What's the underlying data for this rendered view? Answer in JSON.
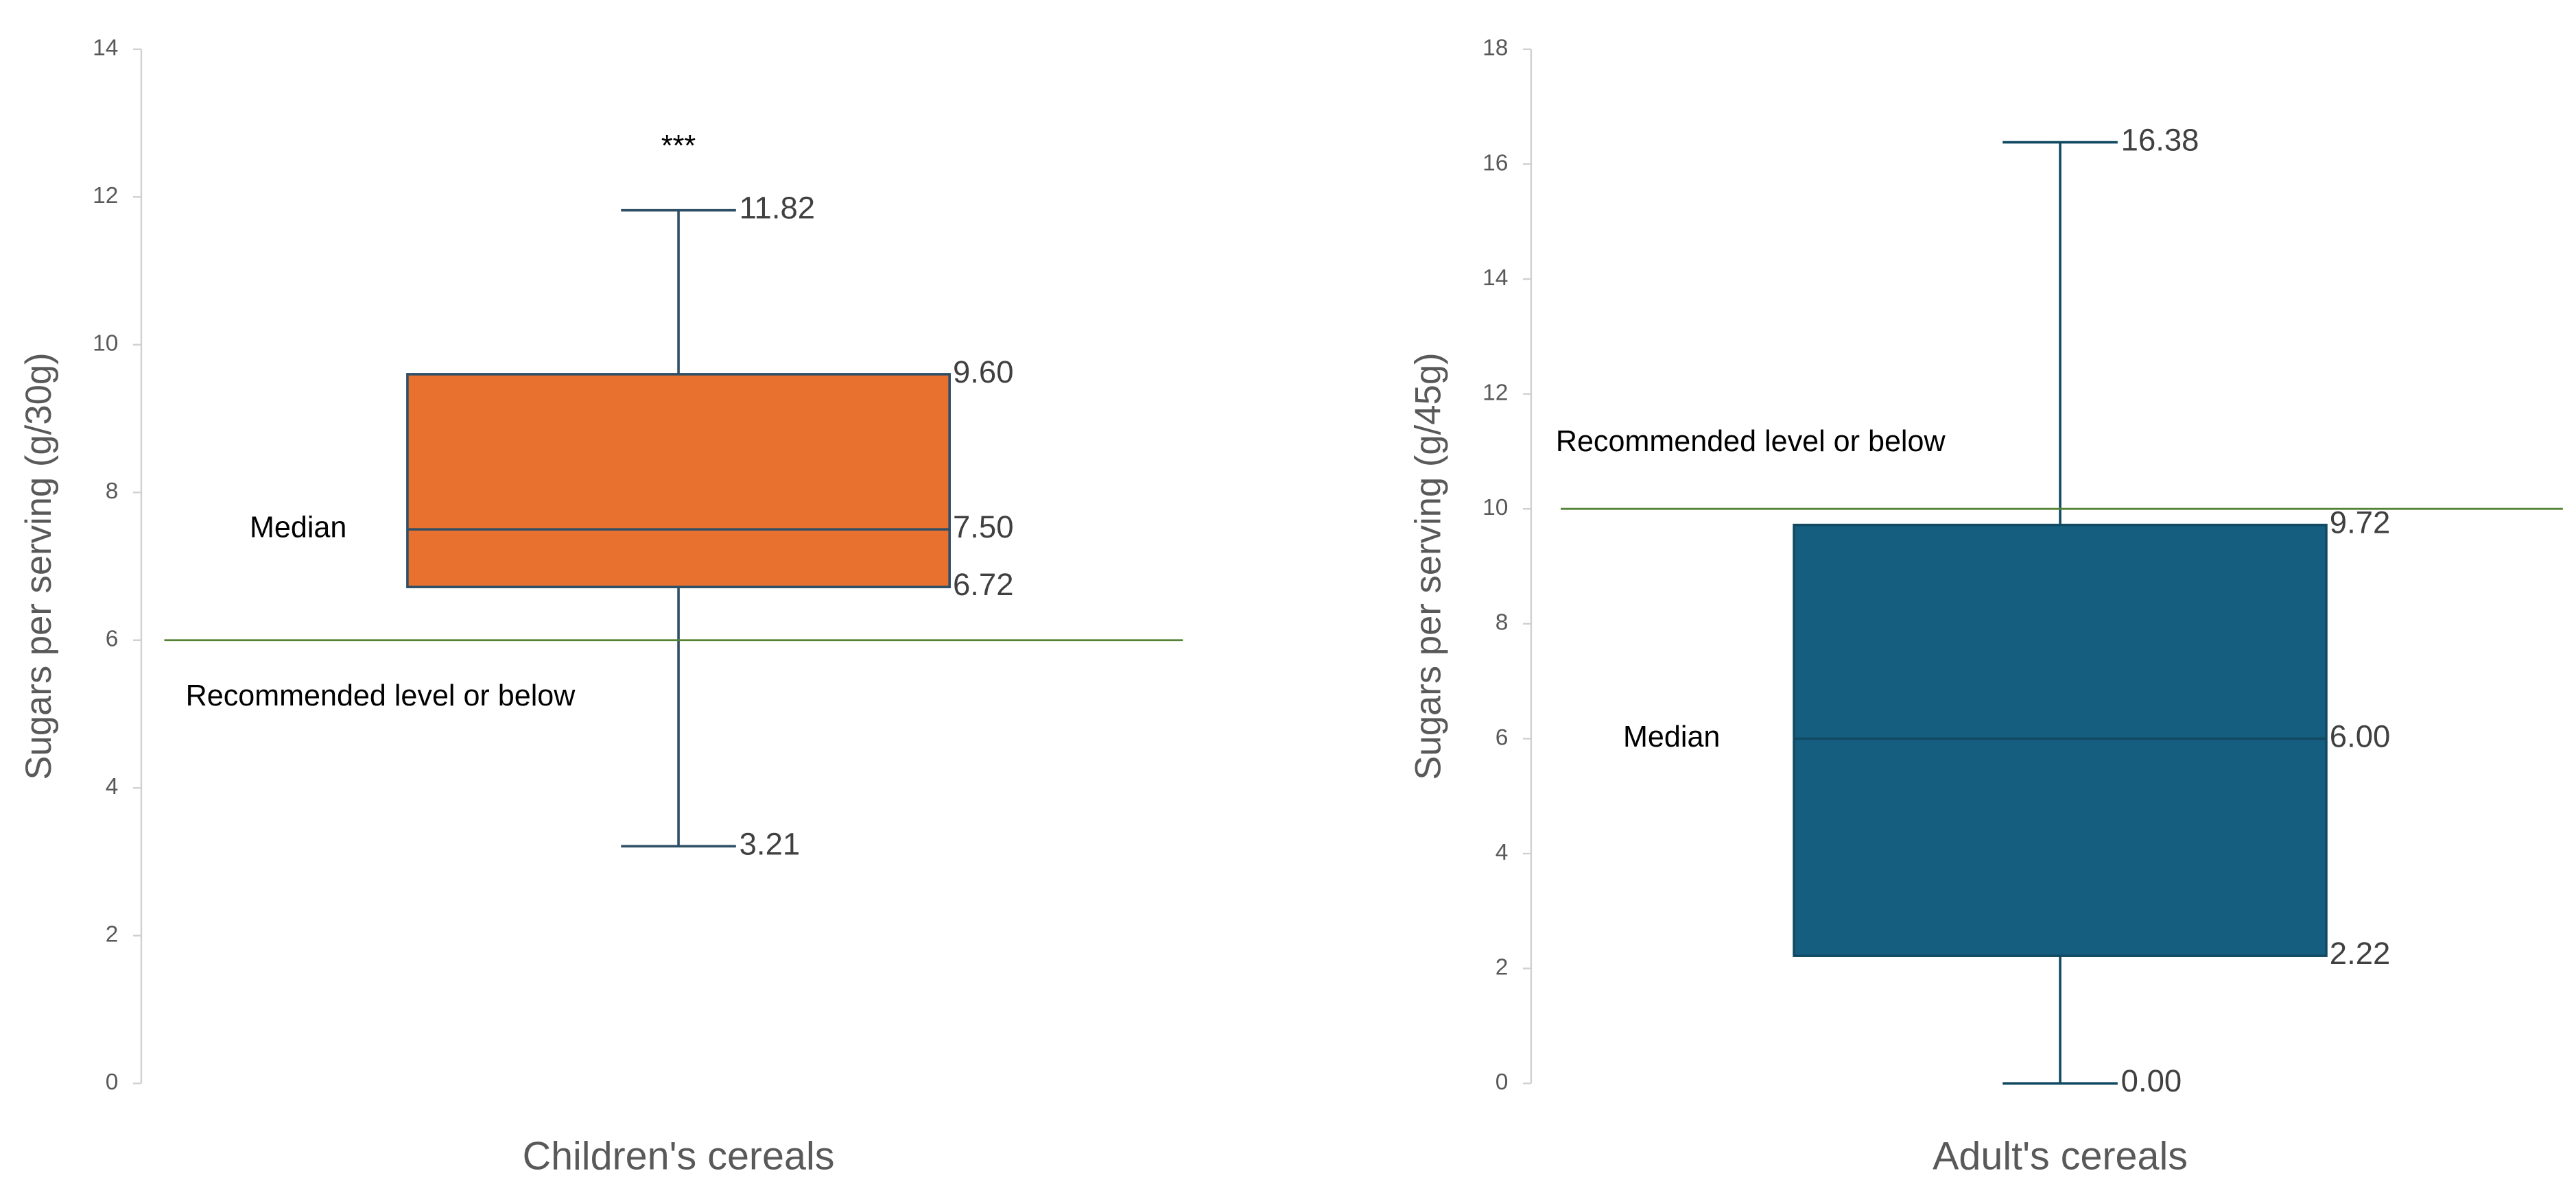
{
  "chart_data": [
    {
      "type": "box",
      "categories": [
        "Children's cereals"
      ],
      "y_label": "Sugars per serving (g/30g)",
      "ylim": [
        0,
        14
      ],
      "yticks": [
        0,
        2,
        4,
        6,
        8,
        10,
        12,
        14
      ],
      "color": "#E87130",
      "line_color": "#2F4F66",
      "boxes": [
        {
          "min": 3.21,
          "q1": 6.72,
          "median": 7.5,
          "q3": 9.6,
          "max": 11.82
        }
      ],
      "value_labels": {
        "min": "3.21",
        "q1": "6.72",
        "median": "7.50",
        "q3": "9.60",
        "max": "11.82"
      },
      "median_label": "Median",
      "annotation": "***",
      "reference_line": {
        "value": 6,
        "label": "Recommended level or below",
        "color": "#548235"
      }
    },
    {
      "type": "box",
      "categories": [
        "Adult's cereals"
      ],
      "y_label": "Sugars per serving (g/45g)",
      "ylim": [
        0,
        18
      ],
      "yticks": [
        0,
        2,
        4,
        6,
        8,
        10,
        12,
        14,
        16,
        18
      ],
      "color": "#155E80",
      "line_color": "#124A63",
      "boxes": [
        {
          "min": 0,
          "q1": 2.22,
          "median": 6,
          "q3": 9.72,
          "max": 16.38
        }
      ],
      "value_labels": {
        "min": "0.00",
        "q1": "2.22",
        "median": "6.00",
        "q3": "9.72",
        "max": "16.38"
      },
      "median_label": "Median",
      "reference_line": {
        "value": 10,
        "label": "Recommended level or below",
        "color": "#548235"
      }
    }
  ]
}
